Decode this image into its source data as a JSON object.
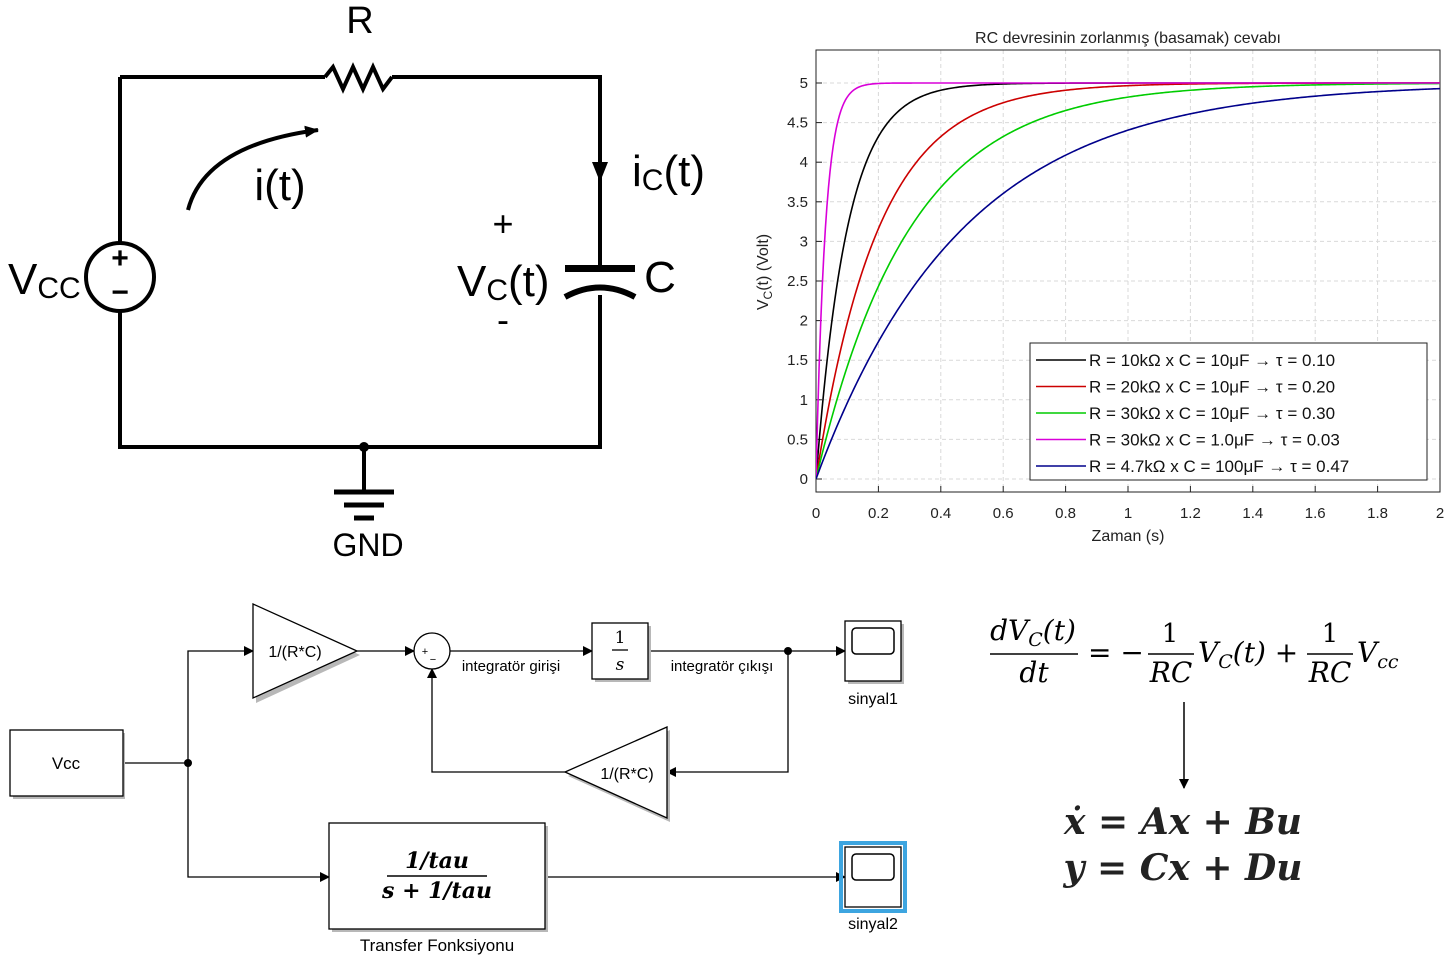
{
  "circuit": {
    "resistor_label": "R",
    "current_label": "i(t)",
    "cap_current_label_main": "i",
    "cap_current_label_sub": "C",
    "cap_current_label_suffix": "(t)",
    "source_label_main": "V",
    "source_label_sub": "CC",
    "source_plus": "+",
    "source_minus": "−",
    "cap_plus": "+",
    "cap_minus": "-",
    "cap_voltage_main": "V",
    "cap_voltage_sub": "C",
    "cap_voltage_suffix": "(t)",
    "capacitor_label": "C",
    "ground_label": "GND"
  },
  "chart_data": {
    "type": "line",
    "title": "RC devresinin zorlanmış (basamak) cevabı",
    "xlabel": "Zaman (s)",
    "ylabel_main": "V",
    "ylabel_sub": "C",
    "ylabel_suffix": "(t) (Volt)",
    "xlim": [
      0,
      2
    ],
    "ylim": [
      0,
      5
    ],
    "xticks": [
      0,
      0.2,
      0.4,
      0.6,
      0.8,
      1,
      1.2,
      1.4,
      1.6,
      1.8,
      2
    ],
    "xtick_labels": [
      "0",
      "0.2",
      "0.4",
      "0.6",
      "0.8",
      "1",
      "1.2",
      "1.4",
      "1.6",
      "1.8",
      "2"
    ],
    "yticks": [
      0,
      0.5,
      1,
      1.5,
      2,
      2.5,
      3,
      3.5,
      4,
      4.5,
      5
    ],
    "ytick_labels": [
      "0",
      "0.5",
      "1",
      "1.5",
      "2",
      "2.5",
      "3",
      "3.5",
      "4",
      "4.5",
      "5"
    ],
    "grid": true,
    "legend_position": "bottom-right",
    "amplitude": 5,
    "series": [
      {
        "name": "R = 10kΩ  x  C = 10μF  →  τ = 0.10",
        "tau": 0.1,
        "color": "#000000"
      },
      {
        "name": "R = 20kΩ  x  C = 10μF  →  τ = 0.20",
        "tau": 0.2,
        "color": "#cc0000"
      },
      {
        "name": "R = 30kΩ  x  C = 10μF  →  τ = 0.30",
        "tau": 0.3,
        "color": "#00cc00"
      },
      {
        "name": "R = 30kΩ  x  C = 1.0μF  →  τ = 0.03",
        "tau": 0.03,
        "color": "#d900d9"
      },
      {
        "name": "R = 4.7kΩ  x  C = 100μF  →  τ = 0.47",
        "tau": 0.47,
        "color": "#00008b"
      }
    ]
  },
  "simulink": {
    "vcc_block": "Vcc",
    "gain_top": "1/(R*C)",
    "gain_feedback": "1/(R*C)",
    "sum_plus": "+",
    "sum_minus": "−",
    "integrator_num": "1",
    "integrator_den": "s",
    "label_integrator_input": "integratör girişi",
    "label_integrator_output": "integratör çıkışı",
    "scope1_label": "sinyal1",
    "scope2_label": "sinyal2",
    "tf_num": "1/tau",
    "tf_den": "s + 1/tau",
    "tf_caption": "Transfer Fonksiyonu"
  },
  "equations": {
    "ode_lhs_num": "dV",
    "ode_lhs_num_sub": "C",
    "ode_lhs_num_suffix": "(t)",
    "ode_lhs_den": "dt",
    "ode_eq": "= −",
    "frac1_num": "1",
    "frac1_den": "RC",
    "term1_main": "V",
    "term1_sub": "C",
    "term1_suffix": "(t) +",
    "frac2_num": "1",
    "frac2_den": "RC",
    "term2_main": "V",
    "term2_sub": "cc",
    "state_eq1": "ẋ = Ax + Bu",
    "state_eq2": "y = Cx + Du"
  }
}
